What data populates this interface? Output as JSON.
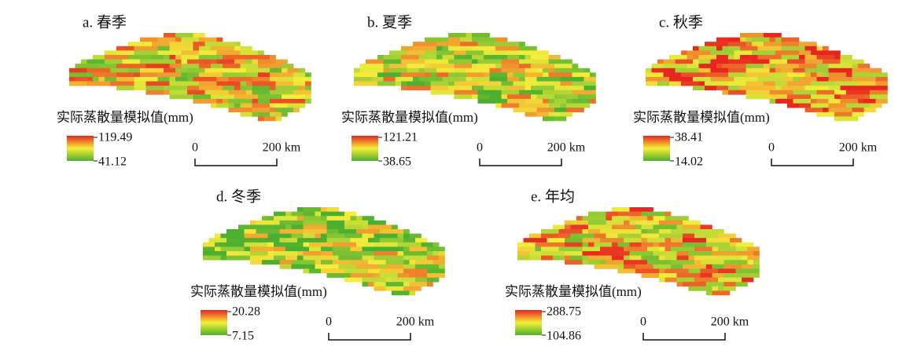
{
  "panels": [
    {
      "title": "a. 春季",
      "legend_title": "实际蒸散量模拟值(mm)",
      "legend_max": "119.49",
      "legend_min": "41.12",
      "scale_start": "0",
      "scale_end": "200 km"
    },
    {
      "title": "b. 夏季",
      "legend_title": "实际蒸散量模拟值(mm)",
      "legend_max": "121.21",
      "legend_min": "38.65",
      "scale_start": "0",
      "scale_end": "200 km"
    },
    {
      "title": "c. 秋季",
      "legend_title": "实际蒸散量模拟值(mm)",
      "legend_max": "38.41",
      "legend_min": "14.02",
      "scale_start": "0",
      "scale_end": "200 km"
    },
    {
      "title": "d. 冬季",
      "legend_title": "实际蒸散量模拟值(mm)",
      "legend_max": "20.28",
      "legend_min": "7.15",
      "scale_start": "0",
      "scale_end": "200 km"
    },
    {
      "title": "e. 年均",
      "legend_title": "实际蒸散量模拟值(mm)",
      "legend_max": "288.75",
      "legend_min": "104.86",
      "scale_start": "0",
      "scale_end": "200 km"
    }
  ]
}
